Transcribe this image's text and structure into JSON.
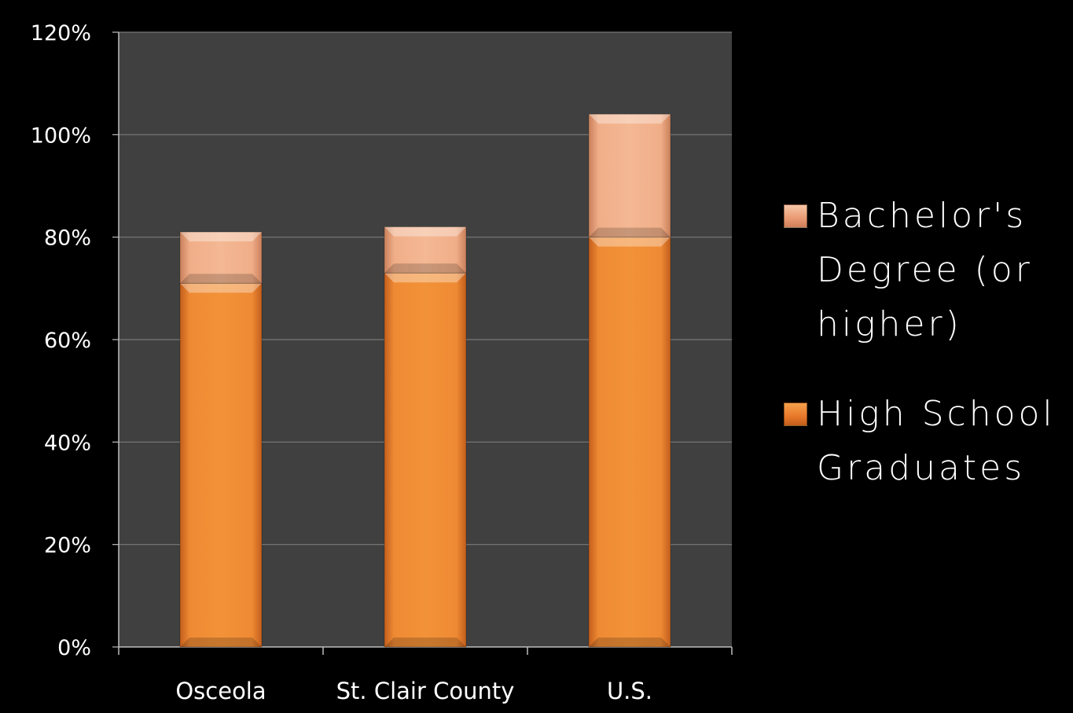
{
  "chart_data": {
    "type": "bar",
    "stacked": true,
    "categories": [
      "Osceola",
      "St. Clair County",
      "U.S."
    ],
    "series": [
      {
        "name": "High School Graduates",
        "values": [
          71,
          73,
          80
        ],
        "color": "#e8782a"
      },
      {
        "name": "Bachelor's Degree (or higher)",
        "values": [
          10,
          9,
          24
        ],
        "color": "#e9a07a"
      }
    ],
    "ylim": [
      0,
      120
    ],
    "yticks": [
      "0%",
      "20%",
      "40%",
      "60%",
      "80%",
      "100%",
      "120%"
    ],
    "grid": true,
    "legend_position": "right",
    "legend_order": [
      "Bachelor's Degree (or higher)",
      "High School Graduates"
    ],
    "plot_background": "#404040",
    "page_background": "#000000"
  },
  "legend": {
    "bachelors_line1": "Bachelor's",
    "bachelors_line2": "Degree (or",
    "bachelors_line3": "higher)",
    "hs_line1": "High School",
    "hs_line2": "Graduates"
  }
}
